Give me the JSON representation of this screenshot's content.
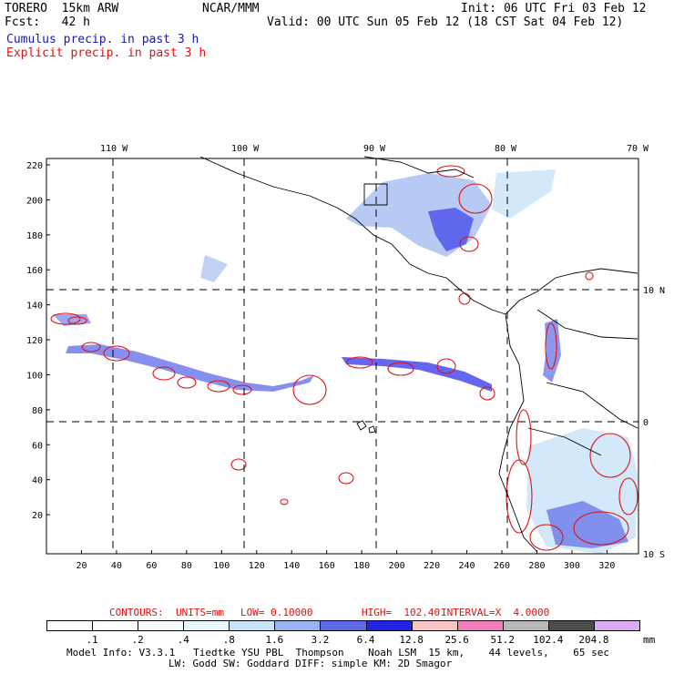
{
  "header": {
    "model": "TORERO  15km ARW",
    "org": "NCAR/MMM",
    "init": "Init: 06 UTC Fri 03 Feb 12",
    "fcst": "Fcst:   42 h",
    "valid": "Valid: 00 UTC Sun 05 Feb 12 (18 CST Sat 04 Feb 12)",
    "legend_cumulus": "Cumulus precip. in past 3 h",
    "legend_explicit": "Explicit precip. in past 3 h"
  },
  "axes": {
    "lon_labels": [
      "110 W",
      "100 W",
      "90 W",
      "80 W",
      "70 W"
    ],
    "lat_labels": [
      "10 N",
      "0",
      "10 S"
    ],
    "y_ticks": [
      "220",
      "200",
      "180",
      "160",
      "140",
      "120",
      "100",
      "80",
      "60",
      "40",
      "20"
    ],
    "x_ticks": [
      "20",
      "40",
      "60",
      "80",
      "100",
      "120",
      "140",
      "160",
      "180",
      "200",
      "220",
      "240",
      "260",
      "280",
      "300",
      "320"
    ]
  },
  "contour_info": {
    "contours": "CONTOURS:",
    "units": "UNITS=mm",
    "low": "LOW= 0.10000",
    "high": "HIGH=  102.40",
    "interval": "INTERVAL=X  4.0000"
  },
  "colorbar": {
    "colors": [
      "#ffffff",
      "#ffffff",
      "#f5fbff",
      "#e8f8fc",
      "#c8e4f8",
      "#98b4f0",
      "#5f6ae8",
      "#2424e8",
      "#f8c4c4",
      "#f37ebe",
      "#b8b8b8",
      "#4c4c4c",
      "#ddaaf4"
    ],
    "labels": [
      ".1",
      ".2",
      ".4",
      ".8",
      "1.6",
      "3.2",
      "6.4",
      "12.8",
      "25.6",
      "51.2",
      "102.4",
      "204.8"
    ],
    "unit": "mm"
  },
  "footer": {
    "line1": "Model Info: V3.3.1   Tiedtke YSU PBL  Thompson    Noah LSM  15 km,    44 levels,    65 sec",
    "line2": "LW: Godd SW: Goddard DIFF: simple KM: 2D Smagor"
  }
}
